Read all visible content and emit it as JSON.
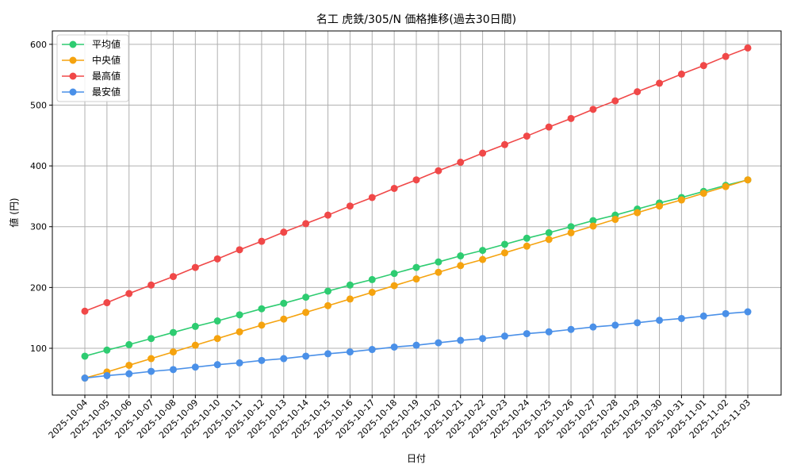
{
  "chart_data": {
    "type": "line",
    "title": "名工 虎鉄/305/N 価格推移(過去30日間)",
    "xlabel": "日付",
    "ylabel": "値 (円)",
    "ylim": [
      23,
      622
    ],
    "yticks": [
      100,
      200,
      300,
      400,
      500,
      600
    ],
    "grid": true,
    "legend_position": "top-left",
    "categories": [
      "2025-10-04",
      "2025-10-05",
      "2025-10-06",
      "2025-10-07",
      "2025-10-08",
      "2025-10-09",
      "2025-10-10",
      "2025-10-11",
      "2025-10-12",
      "2025-10-13",
      "2025-10-14",
      "2025-10-15",
      "2025-10-16",
      "2025-10-17",
      "2025-10-18",
      "2025-10-19",
      "2025-10-20",
      "2025-10-21",
      "2025-10-22",
      "2025-10-23",
      "2025-10-24",
      "2025-10-25",
      "2025-10-26",
      "2025-10-27",
      "2025-10-28",
      "2025-10-29",
      "2025-10-30",
      "2025-10-31",
      "2025-11-01",
      "2025-11-02",
      "2025-11-03"
    ],
    "series": [
      {
        "name": "平均値",
        "color": "#2ecc71",
        "values": [
          87,
          97,
          106,
          116,
          126,
          136,
          145,
          155,
          165,
          174,
          184,
          194,
          204,
          213,
          223,
          233,
          242,
          252,
          261,
          271,
          281,
          290,
          300,
          310,
          319,
          329,
          339,
          348,
          358,
          368,
          377
        ]
      },
      {
        "name": "中央値",
        "color": "#f5a30f",
        "values": [
          51,
          61,
          72,
          83,
          94,
          105,
          116,
          127,
          138,
          148,
          159,
          170,
          181,
          192,
          203,
          214,
          225,
          236,
          246,
          257,
          268,
          279,
          290,
          301,
          312,
          323,
          334,
          344,
          355,
          366,
          377
        ]
      },
      {
        "name": "最高値",
        "color": "#f04848",
        "values": [
          161,
          175,
          190,
          204,
          218,
          233,
          247,
          262,
          276,
          291,
          305,
          319,
          334,
          348,
          363,
          377,
          392,
          406,
          421,
          435,
          449,
          464,
          478,
          493,
          507,
          522,
          536,
          551,
          565,
          580,
          594
        ]
      },
      {
        "name": "最安値",
        "color": "#4a90e8",
        "values": [
          51,
          55,
          58,
          62,
          65,
          69,
          73,
          76,
          80,
          83,
          87,
          91,
          94,
          98,
          102,
          105,
          109,
          113,
          116,
          120,
          124,
          127,
          131,
          135,
          138,
          142,
          146,
          149,
          153,
          157,
          160
        ]
      }
    ]
  }
}
